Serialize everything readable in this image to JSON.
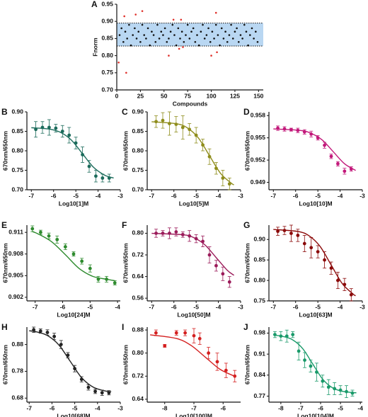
{
  "chart_data": [
    {
      "type": "scatter",
      "letter": "A",
      "xlabel": "Compounds",
      "ylabel": "Fnorm",
      "xlim": [
        0,
        155
      ],
      "xticks": [
        0,
        25,
        50,
        75,
        100,
        125,
        150
      ],
      "ylim": [
        0.7,
        0.95
      ],
      "yticks": [
        {
          "value": 0.7,
          "label": "0.70"
        },
        0.75,
        {
          "value": 0.8,
          "label": "0.80"
        },
        0.85,
        {
          "value": 0.9,
          "label": "0.90"
        },
        0.95
      ],
      "band": [
        0.828,
        0.895
      ],
      "band_color": "#b9d7f2",
      "series": [
        {
          "color": "#111111",
          "x": [
            3,
            5,
            7,
            9,
            11,
            13,
            15,
            17,
            19,
            21,
            23,
            25,
            27,
            29,
            31,
            33,
            35,
            37,
            39,
            41,
            43,
            45,
            47,
            49,
            51,
            53,
            55,
            57,
            59,
            61,
            63,
            65,
            67,
            69,
            71,
            73,
            75,
            77,
            79,
            81,
            83,
            85,
            87,
            89,
            91,
            93,
            95,
            97,
            99,
            101,
            103,
            105,
            107,
            109,
            111,
            113,
            115,
            117,
            119,
            121,
            123,
            125,
            127,
            129,
            131,
            133,
            135,
            137,
            139,
            141,
            143,
            145,
            147,
            149
          ],
          "values": [
            0.86,
            0.88,
            0.84,
            0.87,
            0.85,
            0.89,
            0.83,
            0.86,
            0.88,
            0.85,
            0.87,
            0.84,
            0.89,
            0.86,
            0.85,
            0.88,
            0.83,
            0.87,
            0.86,
            0.84,
            0.89,
            0.85,
            0.87,
            0.86,
            0.88,
            0.84,
            0.85,
            0.87,
            0.89,
            0.86,
            0.83,
            0.88,
            0.85,
            0.87,
            0.84,
            0.86,
            0.89,
            0.85,
            0.87,
            0.88,
            0.84,
            0.86,
            0.83,
            0.87,
            0.89,
            0.85,
            0.86,
            0.88,
            0.84,
            0.87,
            0.85,
            0.89,
            0.86,
            0.83,
            0.88,
            0.85,
            0.87,
            0.84,
            0.86,
            0.89,
            0.85,
            0.87,
            0.88,
            0.84,
            0.86,
            0.85,
            0.89,
            0.87,
            0.83,
            0.86,
            0.88,
            0.85,
            0.87,
            0.84
          ]
        },
        {
          "color": "#e0312b",
          "x": [
            2,
            10,
            8,
            20,
            27,
            55,
            60,
            66,
            68,
            70,
            100,
            105,
            106
          ],
          "values": [
            0.78,
            0.75,
            0.915,
            0.92,
            0.93,
            0.8,
            0.905,
            0.82,
            0.905,
            0.825,
            0.8,
            0.925,
            0.81
          ]
        }
      ]
    },
    {
      "type": "scatter",
      "letter": "B",
      "xlabel": "Log10[1]M",
      "ylabel": "670nm/650nm",
      "xlim": [
        -7.2,
        -3
      ],
      "xticks": [
        -7,
        -6,
        -5,
        -4,
        -3
      ],
      "ylim": [
        0.7,
        0.9
      ],
      "yticks": [
        {
          "value": 0.7,
          "label": "0.70"
        },
        0.75,
        {
          "value": 0.8,
          "label": "0.80"
        },
        0.85,
        {
          "value": 0.9,
          "label": "0.90"
        }
      ],
      "series": [
        {
          "color": "#1b6b5b",
          "x": [
            -6.8,
            -6.5,
            -6.2,
            -5.9,
            -5.6,
            -5.3,
            -5.0,
            -4.7,
            -4.4,
            -4.1,
            -3.8,
            -3.5
          ],
          "values": [
            0.855,
            0.86,
            0.86,
            0.858,
            0.85,
            0.84,
            0.82,
            0.79,
            0.76,
            0.735,
            0.73,
            0.73
          ],
          "errors": [
            0.02,
            0.015,
            0.02,
            0.01,
            0.015,
            0.02,
            0.015,
            0.02,
            0.015,
            0.015,
            0.01,
            0.01
          ],
          "fit": {
            "x": [
              -7,
              -6.2,
              -5.7,
              -5.2,
              -4.7,
              -4.2,
              -3.7,
              -3.3
            ],
            "values": [
              0.8593,
              0.8558,
              0.8477,
              0.8276,
              0.7925,
              0.7574,
              0.7373,
              0.7301
            ]
          }
        }
      ]
    },
    {
      "type": "scatter",
      "letter": "C",
      "xlabel": "Log10[5]M",
      "ylabel": "670nm/650nm",
      "xlim": [
        -7.2,
        -3
      ],
      "xticks": [
        -7,
        -6,
        -5,
        -4,
        -3
      ],
      "ylim": [
        0.7,
        0.9
      ],
      "yticks": [
        {
          "value": 0.7,
          "label": "0.70"
        },
        0.75,
        {
          "value": 0.8,
          "label": "0.80"
        },
        0.85,
        {
          "value": 0.9,
          "label": "0.90"
        }
      ],
      "series": [
        {
          "color": "#8f8d1c",
          "x": [
            -6.8,
            -6.5,
            -6.2,
            -5.9,
            -5.6,
            -5.3,
            -5.0,
            -4.7,
            -4.4,
            -4.1,
            -3.8,
            -3.5
          ],
          "values": [
            0.875,
            0.878,
            0.87,
            0.868,
            0.86,
            0.855,
            0.84,
            0.815,
            0.785,
            0.755,
            0.73,
            0.715
          ],
          "errors": [
            0.015,
            0.02,
            0.03,
            0.02,
            0.03,
            0.015,
            0.02,
            0.015,
            0.02,
            0.015,
            0.02,
            0.015
          ],
          "fit": {
            "x": [
              -7,
              -5.9,
              -5.4,
              -4.9,
              -4.4,
              -3.9,
              -3.4,
              -3.3
            ],
            "values": [
              0.8746,
              0.8696,
              0.8591,
              0.833,
              0.7875,
              0.742,
              0.716,
              0.713
            ]
          }
        }
      ]
    },
    {
      "type": "scatter",
      "letter": "D",
      "xlabel": "Log10[10]M",
      "ylabel": "670nm/650nm",
      "xlim": [
        -7.2,
        -3
      ],
      "xticks": [
        -7,
        -6,
        -5,
        -4,
        -3
      ],
      "ylim": [
        0.948,
        0.9585
      ],
      "yticks": [
        0.949,
        0.952,
        0.955,
        0.958
      ],
      "series": [
        {
          "color": "#c2187a",
          "x": [
            -6.8,
            -6.5,
            -6.2,
            -5.9,
            -5.6,
            -5.3,
            -5.0,
            -4.7,
            -4.4,
            -4.1,
            -3.8,
            -3.5
          ],
          "values": [
            0.9563,
            0.9562,
            0.9561,
            0.956,
            0.9558,
            0.9555,
            0.955,
            0.954,
            0.9525,
            0.9515,
            0.9505,
            0.9508
          ],
          "errors": [
            0.0003,
            0.0003,
            0.0002,
            0.0003,
            0.0003,
            0.0004,
            0.0003,
            0.0004,
            0.0003,
            0.0003,
            0.0004,
            0.0003
          ],
          "fit": {
            "x": [
              -7,
              -5.8,
              -5.3,
              -4.8,
              -4.3,
              -3.8,
              -3.3
            ],
            "values": [
              0.9562,
              0.956,
              0.9556,
              0.9547,
              0.9531,
              0.9515,
              0.9506
            ]
          }
        }
      ]
    },
    {
      "type": "scatter",
      "letter": "E",
      "xlabel": "Log10[24]M",
      "ylabel": "670nm/650nm",
      "xlim": [
        -7.3,
        -3.9
      ],
      "xticks": [
        -7,
        -6,
        -5,
        -4
      ],
      "ylim": [
        0.9015,
        0.912
      ],
      "yticks": [
        0.902,
        0.905,
        0.908,
        0.911
      ],
      "series": [
        {
          "color": "#2e8b2e",
          "x": [
            -7.1,
            -6.8,
            -6.5,
            -6.2,
            -5.9,
            -5.6,
            -5.3,
            -5.0,
            -4.7,
            -4.4,
            -4.1
          ],
          "values": [
            0.9115,
            0.911,
            0.9105,
            0.91,
            0.909,
            0.908,
            0.907,
            0.906,
            0.9045,
            0.9045,
            0.904
          ],
          "errors": [
            0.0004,
            0.0003,
            0.0004,
            0.0005,
            0.0004,
            0.0003,
            0.0004,
            0.0005,
            0.0004,
            0.0004,
            0.0003
          ],
          "fit": {
            "x": [
              -7.1,
              -6.9,
              -6.4,
              -5.9,
              -5.4,
              -4.9,
              -4.4,
              -4.1
            ],
            "values": [
              0.9111,
              0.9108,
              0.9097,
              0.9079,
              0.906,
              0.9049,
              0.9045,
              0.9043
            ]
          }
        }
      ]
    },
    {
      "type": "scatter",
      "letter": "F",
      "xlabel": "Log10[50]M",
      "ylabel": "670nm/650nm",
      "xlim": [
        -7.2,
        -3
      ],
      "xticks": [
        -7,
        -6,
        -5,
        -4,
        -3
      ],
      "ylim": [
        0.55,
        0.83
      ],
      "yticks": [
        0.56,
        0.64,
        0.72,
        {
          "value": 0.8,
          "label": "0.80"
        }
      ],
      "series": [
        {
          "color": "#9b1b5a",
          "x": [
            -6.8,
            -6.5,
            -6.2,
            -5.9,
            -5.6,
            -5.3,
            -5.0,
            -4.7,
            -4.4,
            -4.1,
            -3.8,
            -3.5
          ],
          "values": [
            0.8,
            0.8,
            0.8,
            0.805,
            0.795,
            0.79,
            0.78,
            0.77,
            0.72,
            0.68,
            0.65,
            0.62
          ],
          "errors": [
            0.015,
            0.01,
            0.02,
            0.015,
            0.01,
            0.02,
            0.015,
            0.02,
            0.03,
            0.02,
            0.025,
            0.02
          ],
          "fit": {
            "x": [
              -7,
              -5.6,
              -5.1,
              -4.6,
              -4.1,
              -3.6,
              -3.3
            ],
            "values": [
              0.7998,
              0.7944,
              0.7836,
              0.7568,
              0.71,
              0.6632,
              0.6447
            ]
          }
        }
      ]
    },
    {
      "type": "scatter",
      "letter": "G",
      "xlabel": "Log10[63]M",
      "ylabel": "670nm/650nm",
      "xlim": [
        -7.2,
        -3
      ],
      "xticks": [
        -7,
        -6,
        -5,
        -4,
        -3
      ],
      "ylim": [
        0.75,
        0.935
      ],
      "yticks": [
        0.75,
        {
          "value": 0.8,
          "label": "0.80"
        },
        0.85,
        {
          "value": 0.9,
          "label": "0.90"
        }
      ],
      "series": [
        {
          "color": "#8b0a0a",
          "x": [
            -6.8,
            -6.5,
            -6.2,
            -5.9,
            -5.6,
            -5.3,
            -5.0,
            -4.7,
            -4.4,
            -4.1,
            -3.8,
            -3.5
          ],
          "values": [
            0.92,
            0.922,
            0.915,
            0.91,
            0.89,
            0.88,
            0.87,
            0.85,
            0.83,
            0.8,
            0.79,
            0.765
          ],
          "errors": [
            0.01,
            0.01,
            0.02,
            0.015,
            0.02,
            0.025,
            0.015,
            0.02,
            0.015,
            0.02,
            0.015,
            0.015
          ],
          "fit": {
            "x": [
              -7,
              -5.9,
              -5.4,
              -4.9,
              -4.4,
              -3.9,
              -3.4,
              -3.3
            ],
            "values": [
              0.9246,
              0.9196,
              0.9091,
              0.883,
              0.8375,
              0.792,
              0.766,
              0.763
            ]
          }
        }
      ]
    },
    {
      "type": "scatter",
      "letter": "H",
      "xlabel": "Log10[68]M",
      "ylabel": "670nm/650nm",
      "xlim": [
        -7.1,
        -3
      ],
      "xticks": [
        -7,
        -6,
        -5,
        -4,
        -3
      ],
      "ylim": [
        0.665,
        0.945
      ],
      "yticks": [
        0.68,
        0.78,
        0.88
      ],
      "series": [
        {
          "color": "#222222",
          "x": [
            -6.8,
            -6.5,
            -6.2,
            -5.9,
            -5.6,
            -5.3,
            -5.0,
            -4.7,
            -4.4,
            -4.1,
            -3.8,
            -3.5
          ],
          "values": [
            0.935,
            0.93,
            0.925,
            0.91,
            0.88,
            0.84,
            0.79,
            0.75,
            0.72,
            0.705,
            0.7,
            0.7
          ],
          "errors": [
            0.01,
            0.008,
            0.01,
            0.012,
            0.015,
            0.01,
            0.012,
            0.01,
            0.01,
            0.008,
            0.01,
            0.008
          ],
          "fit": {
            "x": [
              -7,
              -6.7,
              -6.2,
              -5.7,
              -5.2,
              -4.7,
              -4.2,
              -3.7,
              -3.4
            ],
            "values": [
              0.9312,
              0.9277,
              0.9136,
              0.8786,
              0.8175,
              0.7564,
              0.7214,
              0.7073,
              0.7038
            ]
          }
        }
      ]
    },
    {
      "type": "scatter",
      "letter": "I",
      "xlabel": "Log10[100]M",
      "ylabel": "670nm/650nm",
      "xlim": [
        -8.6,
        -5.4
      ],
      "xticks": [
        -8,
        -7,
        -6
      ],
      "ylim": [
        0.63,
        0.89
      ],
      "yticks": [
        0.64,
        0.72,
        {
          "value": 0.8,
          "label": "0.80"
        },
        0.88
      ],
      "series": [
        {
          "color": "#d42020",
          "x": [
            -8.3,
            -8.0,
            -7.6,
            -7.3,
            -7.0,
            -6.8,
            -6.5,
            -6.2,
            -5.9,
            -5.6
          ],
          "values": [
            0.87,
            0.825,
            0.87,
            0.87,
            0.86,
            0.85,
            0.8,
            0.77,
            0.74,
            0.72
          ],
          "errors": [
            0.01,
            0.005,
            0.008,
            0.01,
            0.025,
            0.02,
            0.02,
            0.03,
            0.025,
            0.02
          ],
          "fit": {
            "x": [
              -8.5,
              -7.6,
              -7.1,
              -6.6,
              -6.1,
              -5.6
            ],
            "values": [
              0.8631,
              0.8505,
              0.8266,
              0.785,
              0.7434,
              0.7195
            ]
          }
        }
      ]
    },
    {
      "type": "scatter",
      "letter": "J",
      "xlabel": "Log10[104]M",
      "ylabel": "670nm/650nm",
      "xlim": [
        -8.6,
        -3.9
      ],
      "xticks": [
        -8,
        -7,
        -6,
        -5,
        -4
      ],
      "ylim": [
        0.75,
        1.0
      ],
      "yticks": [
        0.77,
        0.84,
        0.91,
        0.98
      ],
      "series": [
        {
          "color": "#1a9a6a",
          "x": [
            -8.3,
            -8.0,
            -7.7,
            -7.4,
            -7.1,
            -6.8,
            -6.5,
            -6.2,
            -5.9,
            -5.6,
            -5.3,
            -5.0,
            -4.7,
            -4.4
          ],
          "values": [
            0.975,
            0.97,
            0.97,
            0.975,
            0.92,
            0.89,
            0.87,
            0.85,
            0.82,
            0.8,
            0.795,
            0.79,
            0.785,
            0.78
          ],
          "errors": [
            0.01,
            0.015,
            0.02,
            0.01,
            0.03,
            0.025,
            0.02,
            0.03,
            0.02,
            0.025,
            0.02,
            0.015,
            0.02,
            0.01
          ],
          "fit": {
            "x": [
              -8.3,
              -7.9,
              -7.4,
              -6.9,
              -6.4,
              -5.9,
              -5.4,
              -4.9,
              -4.4,
              -4.2
            ],
            "values": [
              0.9727,
              0.969,
              0.9573,
              0.9282,
              0.8775,
              0.8268,
              0.7977,
              0.786,
              0.782,
              0.7812
            ]
          }
        }
      ]
    }
  ]
}
